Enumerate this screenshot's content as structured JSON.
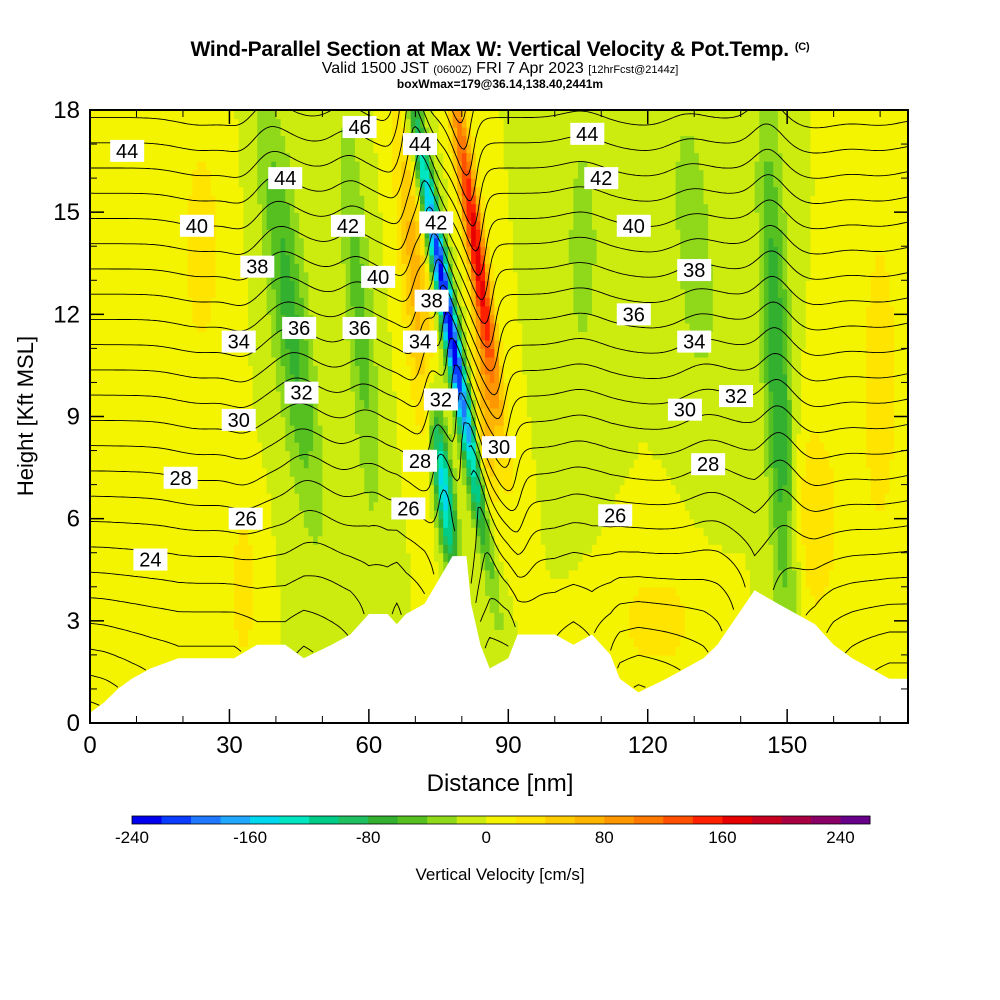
{
  "title": {
    "main": "Wind-Parallel Section at Max W: Vertical Velocity & Pot.Temp.",
    "copyright": "(C)",
    "valid_prefix": "Valid 1500 JST",
    "valid_z": "(0600Z)",
    "valid_date": "FRI 7 Apr 2023",
    "forecast": "[12hrFcst@2144z]",
    "box_info": "boxWmax=179@36.14,138.40,2441m"
  },
  "chart_data": {
    "type": "heatmap",
    "xlabel": "Distance [nm]",
    "ylabel": "Height [Kft MSL]",
    "xlim": [
      0,
      176
    ],
    "ylim": [
      0,
      18
    ],
    "x_ticks": [
      0,
      30,
      60,
      90,
      120,
      150
    ],
    "y_ticks": [
      0,
      3,
      6,
      9,
      12,
      15,
      18
    ],
    "colorbar": {
      "label": "Vertical Velocity [cm/s]",
      "min": -240,
      "max": 260,
      "step": 20,
      "tick_values": [
        -240,
        -160,
        -80,
        0,
        80,
        160,
        240
      ],
      "colors": [
        "#0000ee",
        "#0a3cff",
        "#1f78ff",
        "#20a8ff",
        "#00d8f0",
        "#00e6c0",
        "#00cc88",
        "#1ec060",
        "#33b030",
        "#55c020",
        "#90d81a",
        "#ccec10",
        "#f4f400",
        "#ffe400",
        "#ffcc00",
        "#ffb400",
        "#ff9800",
        "#ff7800",
        "#ff5000",
        "#ff2000",
        "#e80000",
        "#c8001e",
        "#a80040",
        "#8a0066",
        "#68008a"
      ]
    },
    "terrain_kft": [
      [
        0,
        0.3
      ],
      [
        3,
        0.6
      ],
      [
        6,
        1.0
      ],
      [
        9,
        1.3
      ],
      [
        13,
        1.6
      ],
      [
        19,
        1.9
      ],
      [
        26,
        1.9
      ],
      [
        31,
        1.9
      ],
      [
        36,
        2.3
      ],
      [
        42,
        2.3
      ],
      [
        46,
        1.9
      ],
      [
        52,
        2.3
      ],
      [
        56,
        2.6
      ],
      [
        58,
        2.9
      ],
      [
        60,
        3.2
      ],
      [
        64,
        3.2
      ],
      [
        66,
        2.9
      ],
      [
        68,
        3.2
      ],
      [
        72,
        3.5
      ],
      [
        75,
        4.2
      ],
      [
        78,
        4.9
      ],
      [
        81,
        4.9
      ],
      [
        82,
        3.5
      ],
      [
        84,
        2.3
      ],
      [
        86,
        1.6
      ],
      [
        90,
        1.9
      ],
      [
        92,
        2.6
      ],
      [
        100,
        2.6
      ],
      [
        104,
        2.3
      ],
      [
        108,
        2.6
      ],
      [
        112,
        2.0
      ],
      [
        114,
        1.3
      ],
      [
        118,
        0.9
      ],
      [
        124,
        1.3
      ],
      [
        128,
        1.6
      ],
      [
        132,
        1.9
      ],
      [
        135,
        2.3
      ],
      [
        138,
        2.9
      ],
      [
        143,
        3.9
      ],
      [
        148,
        3.5
      ],
      [
        152,
        3.2
      ],
      [
        156,
        2.9
      ],
      [
        160,
        2.3
      ],
      [
        164,
        1.9
      ],
      [
        168,
        1.6
      ],
      [
        172,
        1.3
      ],
      [
        176,
        1.3
      ]
    ],
    "w_features": [
      {
        "x": 77,
        "y": 12.0,
        "w": -240,
        "sx": 1.8,
        "sy": 6.0,
        "tilt": -1.2
      },
      {
        "x": 76,
        "y": 7.0,
        "w": -160,
        "sx": 2.0,
        "sy": 2.5,
        "tilt": -0.8
      },
      {
        "x": 83,
        "y": 14.0,
        "w": 170,
        "sx": 2.0,
        "sy": 5.0,
        "tilt": -1.0
      },
      {
        "x": 85,
        "y": 9.0,
        "w": 60,
        "sx": 2.0,
        "sy": 3.0,
        "tilt": -0.5
      },
      {
        "x": 70,
        "y": 13.0,
        "w": 70,
        "sx": 3.0,
        "sy": 5.0,
        "tilt": -0.6
      },
      {
        "x": 43,
        "y": 12.0,
        "w": -70,
        "sx": 4.0,
        "sy": 6.0,
        "tilt": -0.8
      },
      {
        "x": 33,
        "y": 4.0,
        "w": 40,
        "sx": 3.0,
        "sy": 2.0,
        "tilt": 0
      },
      {
        "x": 58,
        "y": 12.0,
        "w": -50,
        "sx": 3.0,
        "sy": 6.0,
        "tilt": -0.5
      },
      {
        "x": 148,
        "y": 10.0,
        "w": -80,
        "sx": 3.0,
        "sy": 8.0,
        "tilt": -0.3
      },
      {
        "x": 156,
        "y": 6.0,
        "w": 40,
        "sx": 5.0,
        "sy": 3.0,
        "tilt": 0
      },
      {
        "x": 122,
        "y": 3.0,
        "w": 35,
        "sx": 8.0,
        "sy": 1.5,
        "tilt": 0
      },
      {
        "x": 130,
        "y": 14.0,
        "w": -40,
        "sx": 4.0,
        "sy": 4.0,
        "tilt": -0.5
      },
      {
        "x": 106,
        "y": 14.0,
        "w": -30,
        "sx": 4.0,
        "sy": 4.0,
        "tilt": 0
      },
      {
        "x": 24,
        "y": 14.0,
        "w": 30,
        "sx": 5.0,
        "sy": 4.0,
        "tilt": 0
      },
      {
        "x": 170,
        "y": 10.0,
        "w": 30,
        "sx": 5.0,
        "sy": 6.0,
        "tilt": 0
      }
    ],
    "theta_levels": [
      22,
      23,
      24,
      25,
      26,
      27,
      28,
      29,
      30,
      31,
      32,
      33,
      34,
      35,
      36,
      37,
      38,
      39,
      40,
      41,
      42,
      43,
      44,
      45,
      46,
      47,
      48
    ],
    "theta_labels": [
      {
        "text": "44",
        "x": 8,
        "y": 16.8
      },
      {
        "text": "40",
        "x": 23,
        "y": 14.6
      },
      {
        "text": "38",
        "x": 36,
        "y": 13.4
      },
      {
        "text": "34",
        "x": 32,
        "y": 11.2
      },
      {
        "text": "30",
        "x": 32,
        "y": 8.9
      },
      {
        "text": "28",
        "x": 19.5,
        "y": 7.2
      },
      {
        "text": "26",
        "x": 33.5,
        "y": 6.0
      },
      {
        "text": "24",
        "x": 13,
        "y": 4.8
      },
      {
        "text": "44",
        "x": 42,
        "y": 16.0
      },
      {
        "text": "36",
        "x": 45,
        "y": 11.6
      },
      {
        "text": "32",
        "x": 45.5,
        "y": 9.7
      },
      {
        "text": "46",
        "x": 58,
        "y": 17.5
      },
      {
        "text": "42",
        "x": 55.5,
        "y": 14.6
      },
      {
        "text": "40",
        "x": 62,
        "y": 13.1
      },
      {
        "text": "36",
        "x": 58,
        "y": 11.6
      },
      {
        "text": "44",
        "x": 71,
        "y": 17.0
      },
      {
        "text": "42",
        "x": 74.5,
        "y": 14.7
      },
      {
        "text": "38",
        "x": 73.5,
        "y": 12.4
      },
      {
        "text": "34",
        "x": 71,
        "y": 11.2
      },
      {
        "text": "32",
        "x": 75.5,
        "y": 9.5
      },
      {
        "text": "28",
        "x": 71,
        "y": 7.7
      },
      {
        "text": "26",
        "x": 68.5,
        "y": 6.3
      },
      {
        "text": "30",
        "x": 88,
        "y": 8.1
      },
      {
        "text": "44",
        "x": 107,
        "y": 17.3
      },
      {
        "text": "42",
        "x": 110,
        "y": 16.0
      },
      {
        "text": "40",
        "x": 117,
        "y": 14.6
      },
      {
        "text": "36",
        "x": 117,
        "y": 12.0
      },
      {
        "text": "26",
        "x": 113,
        "y": 6.1
      },
      {
        "text": "38",
        "x": 130,
        "y": 13.3
      },
      {
        "text": "34",
        "x": 130,
        "y": 11.2
      },
      {
        "text": "30",
        "x": 128,
        "y": 9.2
      },
      {
        "text": "28",
        "x": 133,
        "y": 7.6
      },
      {
        "text": "32",
        "x": 139,
        "y": 9.6
      }
    ]
  }
}
